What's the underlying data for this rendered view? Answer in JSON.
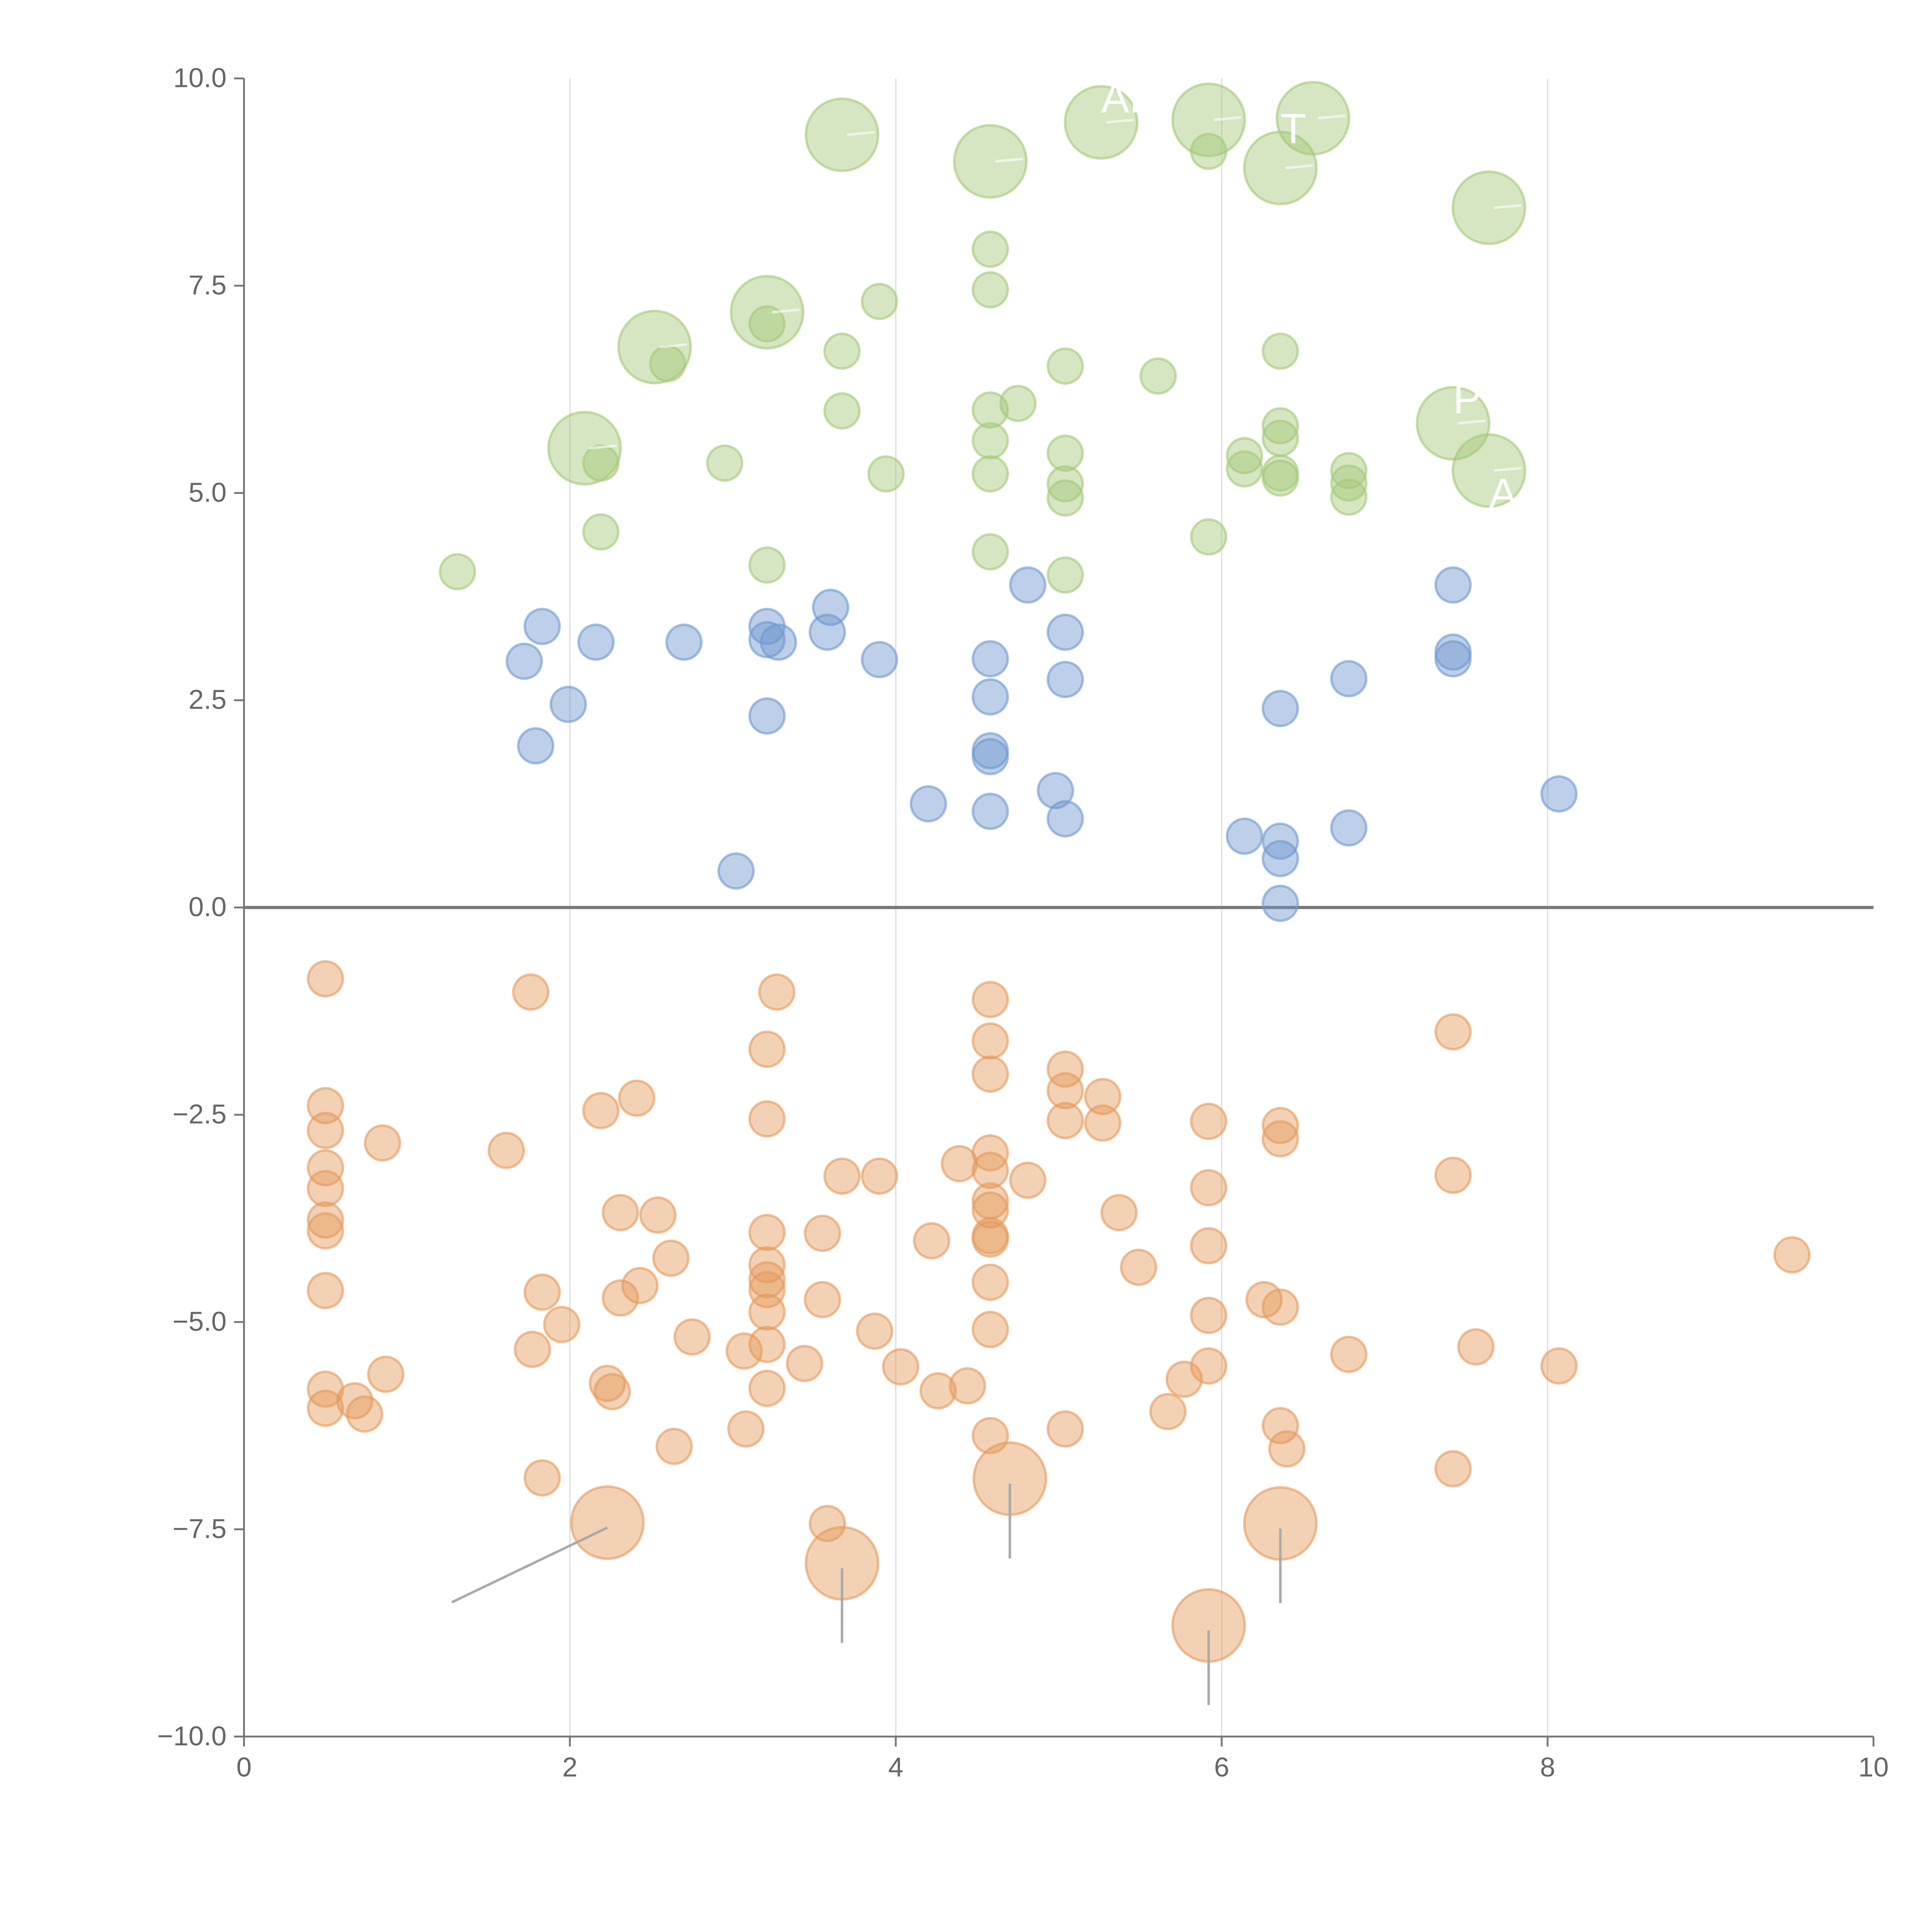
{
  "chart_data": {
    "type": "scatter",
    "title": "",
    "xlabel": "",
    "ylabel": "",
    "xlim": [
      0,
      10
    ],
    "ylim": [
      -10,
      10
    ],
    "xticks": [
      "0",
      "2",
      "4",
      "6",
      "8",
      "10"
    ],
    "yticks": [
      "−10.0",
      "−7.5",
      "−5.0",
      "−2.5",
      "0.0",
      "2.5",
      "5.0",
      "7.5",
      "10.0"
    ],
    "grid": "vertical",
    "zero_line": true,
    "series": [
      {
        "name": "green",
        "color": "#a5c878",
        "points": [
          [
            3.67,
            9.32,
            2
          ],
          [
            4.58,
            9.0,
            2
          ],
          [
            5.26,
            9.47,
            2
          ],
          [
            5.92,
            9.5,
            2
          ],
          [
            6.56,
            9.52,
            2
          ],
          [
            6.36,
            8.92,
            2
          ],
          [
            7.64,
            8.44,
            2
          ],
          [
            3.21,
            7.18,
            2
          ],
          [
            2.52,
            6.76,
            2
          ],
          [
            2.09,
            5.54,
            2
          ],
          [
            7.42,
            5.84,
            2
          ],
          [
            7.64,
            5.27,
            2
          ],
          [
            5.92,
            9.12,
            1
          ],
          [
            4.58,
            7.94,
            1
          ],
          [
            4.58,
            7.45,
            1
          ],
          [
            3.9,
            7.31,
            1
          ],
          [
            3.21,
            7.04,
            1
          ],
          [
            3.67,
            6.71,
            1
          ],
          [
            2.6,
            6.56,
            1
          ],
          [
            5.04,
            6.53,
            1
          ],
          [
            5.61,
            6.41,
            1
          ],
          [
            6.36,
            6.71,
            1
          ],
          [
            4.75,
            6.08,
            1
          ],
          [
            4.58,
            6.0,
            1
          ],
          [
            3.67,
            5.99,
            1
          ],
          [
            6.36,
            5.81,
            1
          ],
          [
            6.36,
            5.66,
            1
          ],
          [
            4.58,
            5.63,
            1
          ],
          [
            5.04,
            5.48,
            1
          ],
          [
            6.14,
            5.45,
            1
          ],
          [
            2.19,
            5.36,
            1
          ],
          [
            2.95,
            5.36,
            1
          ],
          [
            6.14,
            5.29,
            1
          ],
          [
            6.78,
            5.27,
            1
          ],
          [
            6.36,
            5.24,
            1
          ],
          [
            3.94,
            5.23,
            1
          ],
          [
            4.58,
            5.23,
            1
          ],
          [
            6.36,
            5.18,
            1
          ],
          [
            5.04,
            5.11,
            1
          ],
          [
            6.78,
            5.12,
            1
          ],
          [
            6.78,
            4.95,
            1
          ],
          [
            5.04,
            4.94,
            1
          ],
          [
            2.19,
            4.53,
            1
          ],
          [
            5.92,
            4.47,
            1
          ],
          [
            4.58,
            4.29,
            1
          ],
          [
            3.21,
            4.13,
            1
          ],
          [
            5.04,
            4.01,
            1
          ],
          [
            1.31,
            4.05,
            1
          ]
        ]
      },
      {
        "name": "blue",
        "color": "#6f97cf",
        "points": [
          [
            4.81,
            3.89,
            1
          ],
          [
            7.42,
            3.89,
            1
          ],
          [
            3.6,
            3.62,
            1
          ],
          [
            1.83,
            3.39,
            1
          ],
          [
            3.21,
            3.39,
            1
          ],
          [
            3.58,
            3.32,
            1
          ],
          [
            5.04,
            3.32,
            1
          ],
          [
            2.16,
            3.2,
            1
          ],
          [
            2.7,
            3.2,
            1
          ],
          [
            3.21,
            3.23,
            1
          ],
          [
            3.28,
            3.2,
            1
          ],
          [
            7.42,
            3.08,
            1
          ],
          [
            1.72,
            2.97,
            1
          ],
          [
            3.9,
            2.99,
            1
          ],
          [
            4.58,
            3.0,
            1
          ],
          [
            7.42,
            3.0,
            1
          ],
          [
            5.04,
            2.75,
            1
          ],
          [
            6.78,
            2.76,
            1
          ],
          [
            4.58,
            2.54,
            1
          ],
          [
            1.99,
            2.45,
            1
          ],
          [
            6.36,
            2.4,
            1
          ],
          [
            3.21,
            2.31,
            1
          ],
          [
            1.79,
            1.95,
            1
          ],
          [
            4.58,
            1.89,
            1
          ],
          [
            4.58,
            1.82,
            1
          ],
          [
            4.98,
            1.41,
            1
          ],
          [
            8.07,
            1.37,
            1
          ],
          [
            4.2,
            1.25,
            1
          ],
          [
            4.58,
            1.16,
            1
          ],
          [
            5.04,
            1.07,
            1
          ],
          [
            6.78,
            0.96,
            1
          ],
          [
            6.14,
            0.86,
            1
          ],
          [
            6.36,
            0.8,
            1
          ],
          [
            6.36,
            0.59,
            1
          ],
          [
            3.02,
            0.44,
            1
          ],
          [
            6.36,
            0.05,
            1
          ]
        ]
      },
      {
        "name": "orange",
        "color": "#e59a5c",
        "points": [
          [
            2.23,
            -7.42,
            2
          ],
          [
            4.7,
            -6.89,
            2
          ],
          [
            3.67,
            -7.91,
            2
          ],
          [
            6.36,
            -7.43,
            2
          ],
          [
            5.92,
            -8.66,
            2
          ],
          [
            0.5,
            -0.86,
            1
          ],
          [
            1.76,
            -1.02,
            1
          ],
          [
            3.27,
            -1.02,
            1
          ],
          [
            4.58,
            -1.11,
            1
          ],
          [
            7.42,
            -1.5,
            1
          ],
          [
            4.58,
            -1.61,
            1
          ],
          [
            3.21,
            -1.71,
            1
          ],
          [
            5.04,
            -1.95,
            1
          ],
          [
            4.58,
            -2.01,
            1
          ],
          [
            5.04,
            -2.21,
            1
          ],
          [
            5.27,
            -2.28,
            1
          ],
          [
            2.41,
            -2.3,
            1
          ],
          [
            0.5,
            -2.39,
            1
          ],
          [
            2.19,
            -2.45,
            1
          ],
          [
            3.21,
            -2.55,
            1
          ],
          [
            5.04,
            -2.57,
            1
          ],
          [
            5.27,
            -2.6,
            1
          ],
          [
            5.92,
            -2.58,
            1
          ],
          [
            6.36,
            -2.63,
            1
          ],
          [
            0.5,
            -2.69,
            1
          ],
          [
            6.36,
            -2.79,
            1
          ],
          [
            0.85,
            -2.84,
            1
          ],
          [
            1.61,
            -2.93,
            1
          ],
          [
            4.58,
            -2.96,
            1
          ],
          [
            0.5,
            -3.14,
            1
          ],
          [
            4.58,
            -3.17,
            1
          ],
          [
            4.39,
            -3.09,
            1
          ],
          [
            3.67,
            -3.24,
            1
          ],
          [
            3.9,
            -3.24,
            1
          ],
          [
            7.42,
            -3.23,
            1
          ],
          [
            4.81,
            -3.29,
            1
          ],
          [
            0.5,
            -3.39,
            1
          ],
          [
            5.92,
            -3.38,
            1
          ],
          [
            4.58,
            -3.54,
            1
          ],
          [
            4.58,
            -3.65,
            1
          ],
          [
            2.31,
            -3.68,
            1
          ],
          [
            2.54,
            -3.71,
            1
          ],
          [
            5.37,
            -3.68,
            1
          ],
          [
            0.5,
            -3.77,
            1
          ],
          [
            0.5,
            -3.9,
            1
          ],
          [
            3.21,
            -3.92,
            1
          ],
          [
            3.55,
            -3.93,
            1
          ],
          [
            4.58,
            -3.96,
            1
          ],
          [
            4.58,
            -4.0,
            1
          ],
          [
            4.22,
            -4.02,
            1
          ],
          [
            5.92,
            -4.08,
            1
          ],
          [
            9.5,
            -4.19,
            1
          ],
          [
            2.62,
            -4.23,
            1
          ],
          [
            5.49,
            -4.34,
            1
          ],
          [
            3.21,
            -4.31,
            1
          ],
          [
            3.21,
            -4.49,
            1
          ],
          [
            4.58,
            -4.52,
            1
          ],
          [
            2.43,
            -4.56,
            1
          ],
          [
            3.21,
            -4.61,
            1
          ],
          [
            0.5,
            -4.62,
            1
          ],
          [
            1.83,
            -4.64,
            1
          ],
          [
            2.31,
            -4.71,
            1
          ],
          [
            3.55,
            -4.73,
            1
          ],
          [
            6.26,
            -4.73,
            1
          ],
          [
            6.36,
            -4.82,
            1
          ],
          [
            3.21,
            -4.88,
            1
          ],
          [
            5.92,
            -4.92,
            1
          ],
          [
            1.95,
            -5.03,
            1
          ],
          [
            4.58,
            -5.09,
            1
          ],
          [
            3.87,
            -5.11,
            1
          ],
          [
            2.75,
            -5.18,
            1
          ],
          [
            3.21,
            -5.27,
            1
          ],
          [
            7.56,
            -5.3,
            1
          ],
          [
            1.77,
            -5.33,
            1
          ],
          [
            3.07,
            -5.35,
            1
          ],
          [
            6.78,
            -5.39,
            1
          ],
          [
            3.44,
            -5.5,
            1
          ],
          [
            5.92,
            -5.53,
            1
          ],
          [
            8.07,
            -5.53,
            1
          ],
          [
            4.03,
            -5.54,
            1
          ],
          [
            0.87,
            -5.63,
            1
          ],
          [
            5.77,
            -5.69,
            1
          ],
          [
            4.44,
            -5.77,
            1
          ],
          [
            2.23,
            -5.74,
            1
          ],
          [
            0.5,
            -5.81,
            1
          ],
          [
            3.21,
            -5.8,
            1
          ],
          [
            4.26,
            -5.83,
            1
          ],
          [
            2.26,
            -5.84,
            1
          ],
          [
            0.68,
            -5.95,
            1
          ],
          [
            0.5,
            -6.04,
            1
          ],
          [
            0.74,
            -6.11,
            1
          ],
          [
            5.67,
            -6.08,
            1
          ],
          [
            6.36,
            -6.25,
            1
          ],
          [
            5.04,
            -6.29,
            1
          ],
          [
            3.08,
            -6.29,
            1
          ],
          [
            4.58,
            -6.37,
            1
          ],
          [
            6.4,
            -6.53,
            1
          ],
          [
            2.64,
            -6.5,
            1
          ],
          [
            7.42,
            -6.77,
            1
          ],
          [
            1.83,
            -6.88,
            1
          ],
          [
            3.58,
            -7.43,
            1
          ]
        ]
      }
    ],
    "annotations": [
      {
        "text": "AP",
        "x": 5.26,
        "y": 9.47
      },
      {
        "text": "T",
        "x": 6.36,
        "y": 8.92
      },
      {
        "text": "P",
        "x": 7.42,
        "y": 5.84
      },
      {
        "text": "A",
        "x": 7.64,
        "y": 5.27
      }
    ]
  }
}
